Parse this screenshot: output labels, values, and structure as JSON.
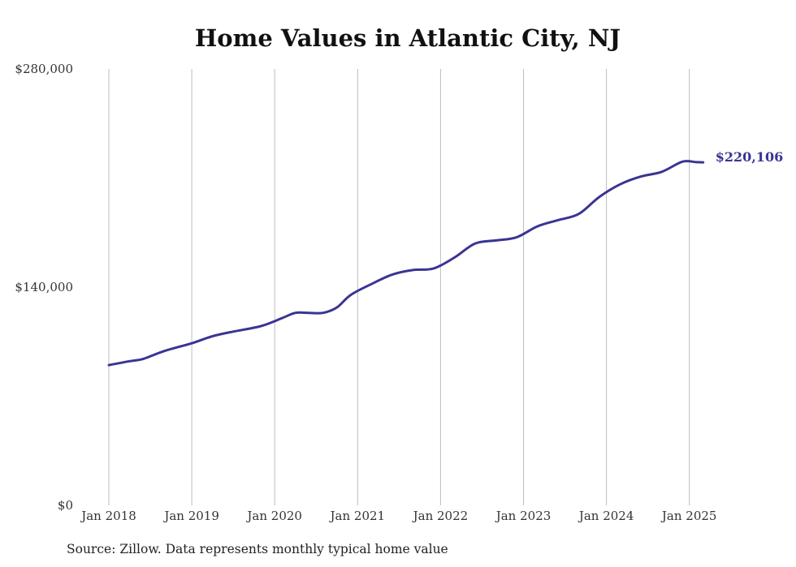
{
  "chart_data": {
    "type": "line",
    "title": "Home Values in Atlantic City, NJ",
    "source": "Source: Zillow. Data represents monthly typical home value",
    "xlabel": "",
    "ylabel": "",
    "y_ticks": [
      "$0",
      "$140,000",
      "$280,000"
    ],
    "ylim": [
      0,
      280000
    ],
    "x_ticks": [
      "Jan 2018",
      "Jan 2019",
      "Jan 2020",
      "Jan 2021",
      "Jan 2022",
      "Jan 2023",
      "Jan 2024",
      "Jan 2025"
    ],
    "grid": "vertical",
    "end_label": "$220,106",
    "color": "#3a3494",
    "series": [
      {
        "x": [
          "2018-01",
          "2018-04",
          "2018-06",
          "2018-09",
          "2019-01",
          "2019-04",
          "2019-07",
          "2019-11",
          "2020-02",
          "2020-04",
          "2020-06",
          "2020-08",
          "2020-10",
          "2020-12",
          "2021-03",
          "2021-06",
          "2021-09",
          "2021-12",
          "2022-03",
          "2022-06",
          "2022-09",
          "2022-12",
          "2023-03",
          "2023-06",
          "2023-09",
          "2023-12",
          "2024-03",
          "2024-06",
          "2024-09",
          "2024-12",
          "2025-02",
          "2025-03"
        ],
        "values": [
          90000,
          92500,
          94000,
          99000,
          104000,
          108500,
          111500,
          115000,
          120000,
          123500,
          123500,
          123500,
          127000,
          135000,
          142000,
          148000,
          151000,
          152000,
          159000,
          168000,
          170000,
          172000,
          179000,
          183000,
          187000,
          198000,
          206000,
          211000,
          214000,
          220500,
          220200,
          220106
        ]
      }
    ]
  }
}
